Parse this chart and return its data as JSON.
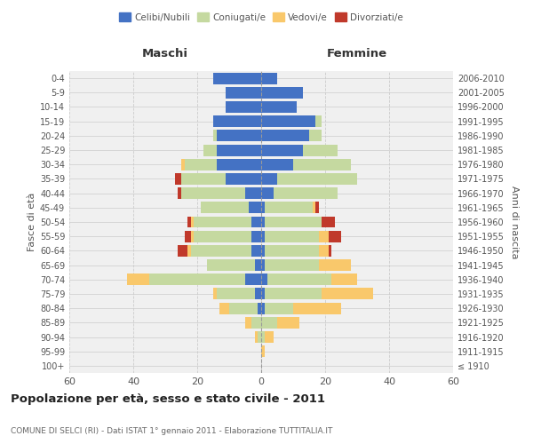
{
  "age_groups": [
    "100+",
    "95-99",
    "90-94",
    "85-89",
    "80-84",
    "75-79",
    "70-74",
    "65-69",
    "60-64",
    "55-59",
    "50-54",
    "45-49",
    "40-44",
    "35-39",
    "30-34",
    "25-29",
    "20-24",
    "15-19",
    "10-14",
    "5-9",
    "0-4"
  ],
  "birth_years": [
    "≤ 1910",
    "1911-1915",
    "1916-1920",
    "1921-1925",
    "1926-1930",
    "1931-1935",
    "1936-1940",
    "1941-1945",
    "1946-1950",
    "1951-1955",
    "1956-1960",
    "1961-1965",
    "1966-1970",
    "1971-1975",
    "1976-1980",
    "1981-1985",
    "1986-1990",
    "1991-1995",
    "1996-2000",
    "2001-2005",
    "2006-2010"
  ],
  "maschi": {
    "celibe": [
      0,
      0,
      0,
      0,
      1,
      2,
      5,
      2,
      3,
      3,
      3,
      4,
      5,
      11,
      14,
      14,
      14,
      15,
      11,
      11,
      15
    ],
    "coniugato": [
      0,
      0,
      1,
      3,
      9,
      12,
      30,
      15,
      19,
      18,
      18,
      15,
      20,
      14,
      10,
      4,
      1,
      0,
      0,
      0,
      0
    ],
    "vedovo": [
      0,
      0,
      1,
      2,
      3,
      1,
      7,
      0,
      1,
      1,
      1,
      0,
      0,
      0,
      1,
      0,
      0,
      0,
      0,
      0,
      0
    ],
    "divorziato": [
      0,
      0,
      0,
      0,
      0,
      0,
      0,
      0,
      3,
      2,
      1,
      0,
      1,
      2,
      0,
      0,
      0,
      0,
      0,
      0,
      0
    ]
  },
  "femmine": {
    "nubile": [
      0,
      0,
      0,
      0,
      1,
      1,
      2,
      1,
      1,
      1,
      1,
      1,
      4,
      5,
      10,
      13,
      15,
      17,
      11,
      13,
      5
    ],
    "coniugata": [
      0,
      0,
      1,
      5,
      9,
      18,
      20,
      17,
      17,
      17,
      18,
      15,
      20,
      25,
      18,
      11,
      4,
      2,
      0,
      0,
      0
    ],
    "vedova": [
      0,
      1,
      3,
      7,
      15,
      16,
      8,
      10,
      3,
      3,
      0,
      1,
      0,
      0,
      0,
      0,
      0,
      0,
      0,
      0,
      0
    ],
    "divorziata": [
      0,
      0,
      0,
      0,
      0,
      0,
      0,
      0,
      1,
      4,
      4,
      1,
      0,
      0,
      0,
      0,
      0,
      0,
      0,
      0,
      0
    ]
  },
  "colors": {
    "celibe": "#4472c4",
    "coniugato": "#c5d9a0",
    "vedovo": "#f9c86b",
    "divorziato": "#c0392b"
  },
  "title": "Popolazione per età, sesso e stato civile - 2011",
  "subtitle": "COMUNE DI SELCI (RI) - Dati ISTAT 1° gennaio 2011 - Elaborazione TUTTITALIA.IT",
  "xlabel_left": "Maschi",
  "xlabel_right": "Femmine",
  "ylabel_left": "Fasce di età",
  "ylabel_right": "Anni di nascita",
  "xlim": 60,
  "background_color": "#ffffff",
  "axes_bg": "#f0f0f0"
}
